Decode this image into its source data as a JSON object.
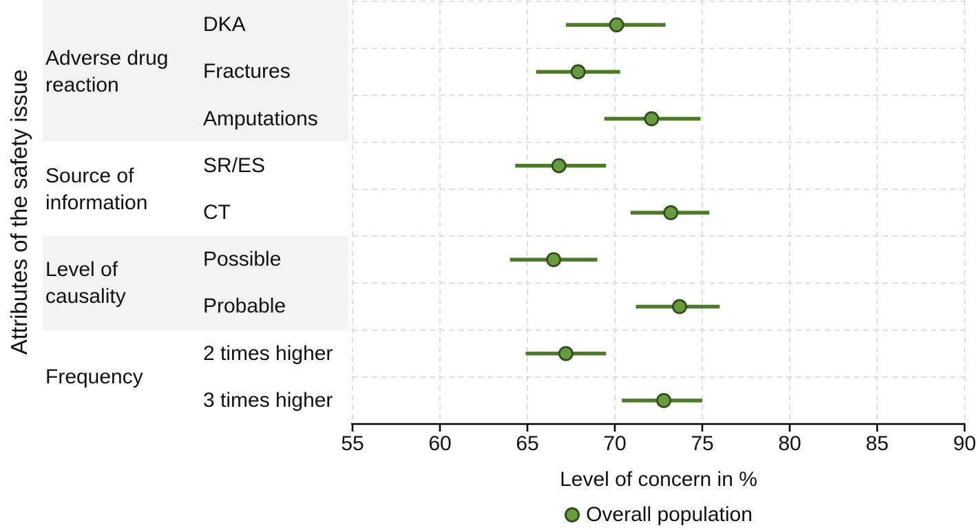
{
  "chart_data": {
    "type": "scatter",
    "subtype": "dot-with-interval-forest-plot",
    "title": "",
    "xlabel": "Level of concern in %",
    "ylabel": "Attributes of the safety issue",
    "xlim": [
      55,
      90
    ],
    "xticks": [
      55,
      60,
      65,
      70,
      75,
      80,
      85,
      90
    ],
    "grid": "dashed-vertical-and-row-separators",
    "legend_position": "bottom-center",
    "legend": [
      {
        "label": "Overall population",
        "marker": "dot"
      }
    ],
    "groups": [
      {
        "label": "Adverse drug reaction",
        "shaded": true,
        "items": [
          {
            "label": "DKA",
            "value": 70.1,
            "low": 67.2,
            "high": 72.9
          },
          {
            "label": "Fractures",
            "value": 67.9,
            "low": 65.5,
            "high": 70.3
          },
          {
            "label": "Amputations",
            "value": 72.1,
            "low": 69.4,
            "high": 74.9
          }
        ]
      },
      {
        "label": "Source of information",
        "shaded": false,
        "items": [
          {
            "label": "SR/ES",
            "value": 66.8,
            "low": 64.3,
            "high": 69.5
          },
          {
            "label": "CT",
            "value": 73.2,
            "low": 70.9,
            "high": 75.4
          }
        ]
      },
      {
        "label": "Level of causality",
        "shaded": true,
        "items": [
          {
            "label": "Possible",
            "value": 66.5,
            "low": 64.0,
            "high": 69.0
          },
          {
            "label": "Probable",
            "value": 73.7,
            "low": 71.2,
            "high": 76.0
          }
        ]
      },
      {
        "label": "Frequency",
        "shaded": false,
        "items": [
          {
            "label": "2 times higher",
            "value": 67.2,
            "low": 64.9,
            "high": 69.5
          },
          {
            "label": "3 times higher",
            "value": 72.8,
            "low": 70.4,
            "high": 75.0
          }
        ]
      }
    ],
    "colors": {
      "dot_fill": "#6a9a3f",
      "dot_stroke": "#2e4d1a",
      "interval_line": "#4d7a2a",
      "gridline": "#d7d7d7",
      "band": "#f3f3f3",
      "axis": "#000000",
      "text": "#111111"
    }
  }
}
